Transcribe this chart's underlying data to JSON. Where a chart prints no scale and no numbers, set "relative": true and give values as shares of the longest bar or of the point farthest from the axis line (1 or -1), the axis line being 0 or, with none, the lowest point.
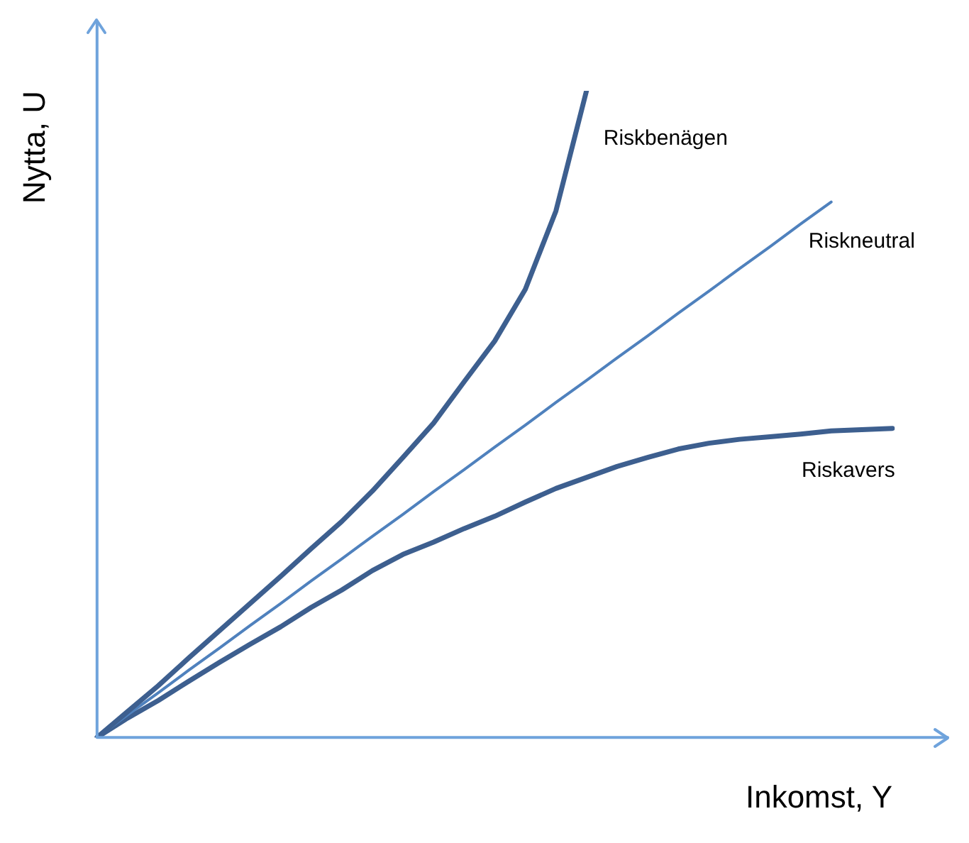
{
  "chart_data": {
    "type": "line",
    "relative": true,
    "xlabel": "Inkomst, Y",
    "ylabel": "Nytta, U",
    "grid": false,
    "legend": false,
    "marker": "none",
    "line_style": "solid",
    "categories": [
      null,
      null,
      null,
      null,
      null,
      null,
      null,
      null,
      null,
      null,
      null,
      null,
      null,
      null,
      null,
      null,
      null,
      null,
      null,
      null,
      null,
      null,
      null,
      null,
      null,
      null,
      null
    ],
    "series": [
      {
        "name": "Riskbenägen",
        "color": "#3d5f8f",
        "values": [
          0,
          0.04,
          0.08,
          0.123,
          0.165,
          0.207,
          0.249,
          0.292,
          0.334,
          0.381,
          0.433,
          0.486,
          0.55,
          0.613,
          0.693,
          0.814,
          1,
          null,
          null,
          null,
          null,
          null,
          null,
          null,
          null,
          null,
          null
        ]
      },
      {
        "name": "Riskneutral",
        "color": "#4f81bd",
        "values": [
          0,
          0.035,
          0.069,
          0.104,
          0.138,
          0.173,
          0.207,
          0.242,
          0.276,
          0.311,
          0.345,
          0.38,
          0.414,
          0.449,
          0.483,
          0.518,
          0.552,
          0.587,
          0.621,
          0.656,
          0.69,
          0.725,
          0.759,
          0.794,
          0.828,
          null,
          null
        ]
      },
      {
        "name": "Riskavers",
        "color": "#3d5f8f",
        "values": [
          0,
          0.03,
          0.057,
          0.087,
          0.116,
          0.144,
          0.171,
          0.201,
          0.228,
          0.258,
          0.283,
          0.302,
          0.323,
          0.342,
          0.364,
          0.385,
          0.402,
          0.419,
          0.433,
          0.446,
          0.455,
          0.461,
          0.465,
          0.469,
          0.474,
          0.476,
          0.478
        ]
      }
    ]
  }
}
